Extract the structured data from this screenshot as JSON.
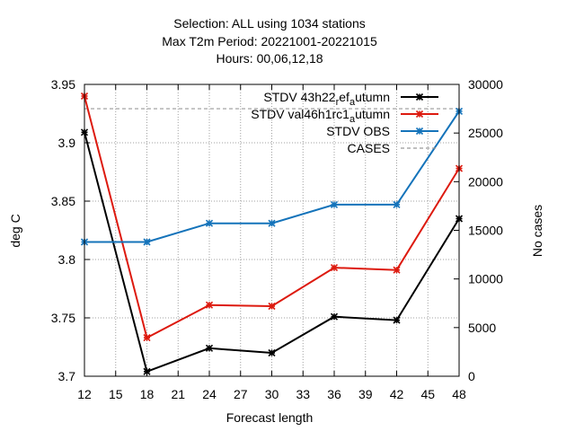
{
  "chart_data": {
    "type": "line",
    "title_lines": [
      "Selection: ALL using  1034 stations",
      "Max T2m   Period: 20221001-20221015",
      "Hours:  00,06,12,18"
    ],
    "xlabel": "Forecast length",
    "ylabel": "deg C",
    "y2label": "No cases",
    "x_ticks": [
      12,
      15,
      18,
      21,
      24,
      27,
      30,
      33,
      36,
      39,
      42,
      45,
      48
    ],
    "y_ticks": [
      "3.7",
      "3.75",
      "3.8",
      "3.85",
      "3.9",
      "3.95"
    ],
    "y2_ticks": [
      "0",
      "5000",
      "10000",
      "15000",
      "20000",
      "25000",
      "30000"
    ],
    "xlim": [
      12,
      48
    ],
    "ylim": [
      3.7,
      3.95
    ],
    "y2lim": [
      0,
      30000
    ],
    "grid": true,
    "legend_position": "top-right",
    "series": [
      {
        "name": "STDV 43h22_ref_autumn",
        "label_parts": [
          "STDV 43h22",
          "r",
          "ef",
          "a",
          "utumn"
        ],
        "color": "#000000",
        "axis": "y",
        "marker": "x",
        "x": [
          12,
          18,
          24,
          30,
          36,
          42,
          48
        ],
        "values": [
          3.909,
          3.704,
          3.724,
          3.72,
          3.751,
          3.748,
          3.835
        ]
      },
      {
        "name": "STDV val46h1rc1_autumn",
        "label_parts": [
          "STDV val46h1rc1",
          "a",
          "utumn"
        ],
        "color": "#dd1a0f",
        "axis": "y",
        "marker": "x",
        "x": [
          12,
          18,
          24,
          30,
          36,
          42,
          48
        ],
        "values": [
          3.94,
          3.733,
          3.761,
          3.76,
          3.793,
          3.791,
          3.878
        ]
      },
      {
        "name": "STDV OBS",
        "label_parts": [
          "STDV OBS"
        ],
        "color": "#1473ba",
        "axis": "y",
        "marker": "x",
        "x": [
          12,
          18,
          24,
          30,
          36,
          42,
          48
        ],
        "values": [
          3.815,
          3.815,
          3.831,
          3.831,
          3.847,
          3.847,
          3.927
        ]
      },
      {
        "name": "CASES",
        "label_parts": [
          "CASES"
        ],
        "color": "#999999",
        "axis": "y2",
        "dashed": true,
        "x": [
          12,
          18,
          24,
          30,
          36,
          42,
          48
        ],
        "values": [
          27500,
          27500,
          27500,
          27500,
          27500,
          27500,
          27500
        ]
      }
    ]
  }
}
